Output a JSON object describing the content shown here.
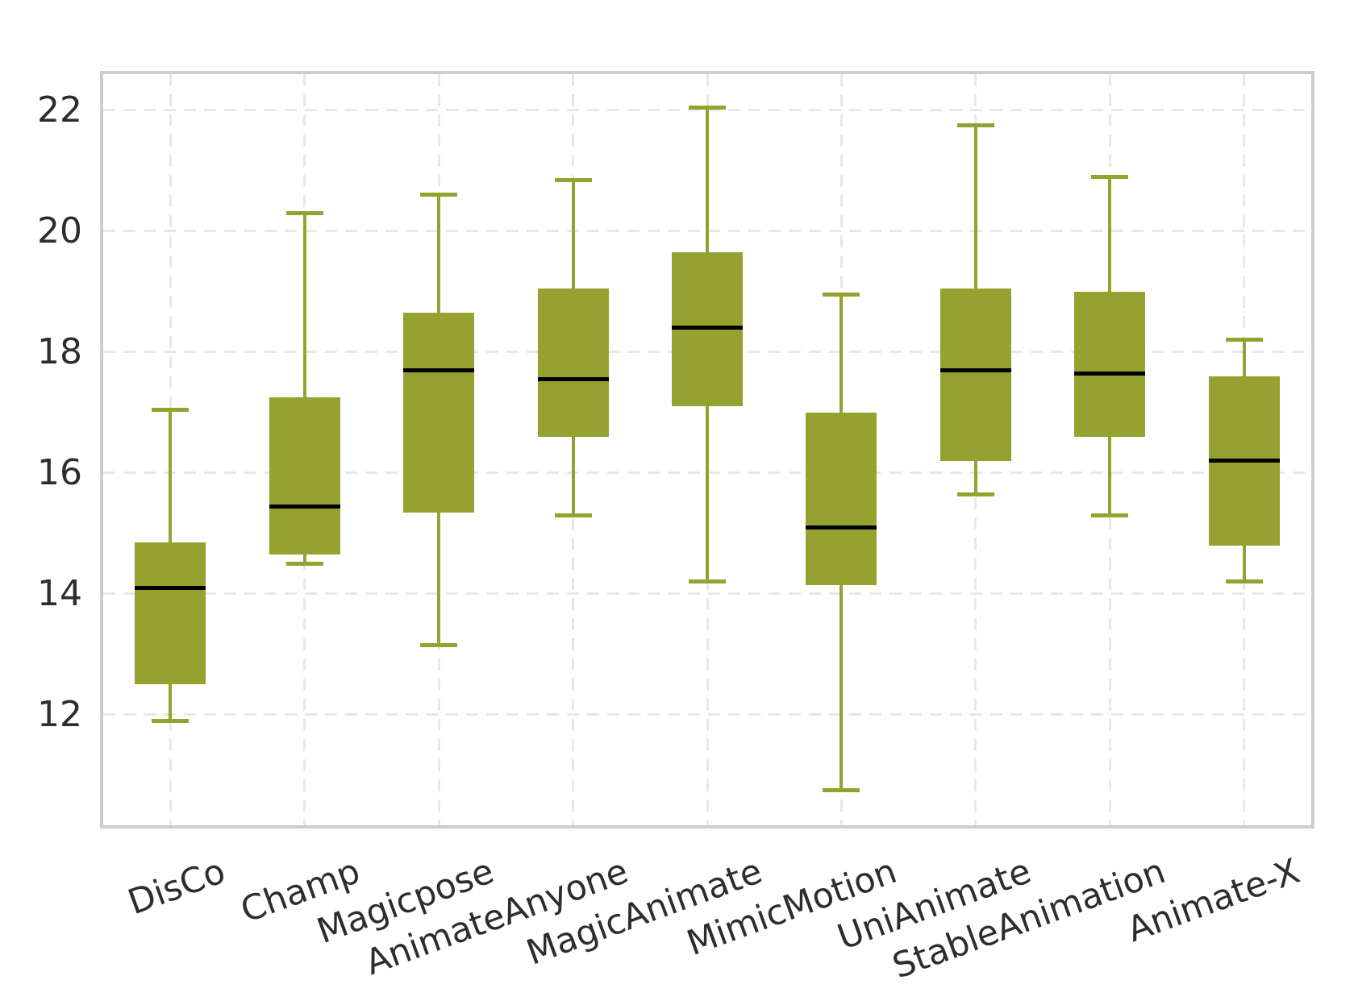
{
  "chart_data": {
    "type": "boxplot",
    "title": "",
    "xlabel": "",
    "ylabel": "",
    "grid": true,
    "y_ticks": [
      12,
      14,
      16,
      18,
      20,
      22
    ],
    "ylim": [
      10.17,
      22.6
    ],
    "categories": [
      "DisCo",
      "Champ",
      "Magicpose",
      "AnimateAnyone",
      "MagicAnimate",
      "MimicMotion",
      "UniAnimate",
      "StableAnimation",
      "Animate-X"
    ],
    "boxes": [
      {
        "label": "DisCo",
        "whisker_low": 11.9,
        "q1": 12.5,
        "median": 14.1,
        "q3": 14.85,
        "whisker_high": 17.05
      },
      {
        "label": "Champ",
        "whisker_low": 14.5,
        "q1": 14.65,
        "median": 15.45,
        "q3": 17.25,
        "whisker_high": 20.3
      },
      {
        "label": "Magicpose",
        "whisker_low": 13.15,
        "q1": 15.35,
        "median": 17.7,
        "q3": 18.65,
        "whisker_high": 20.6
      },
      {
        "label": "AnimateAnyone",
        "whisker_low": 15.3,
        "q1": 16.6,
        "median": 17.55,
        "q3": 19.05,
        "whisker_high": 20.85
      },
      {
        "label": "MagicAnimate",
        "whisker_low": 14.2,
        "q1": 17.1,
        "median": 18.4,
        "q3": 19.65,
        "whisker_high": 22.05
      },
      {
        "label": "MimicMotion",
        "whisker_low": 10.75,
        "q1": 14.15,
        "median": 15.1,
        "q3": 17.0,
        "whisker_high": 18.95
      },
      {
        "label": "UniAnimate",
        "whisker_low": 15.65,
        "q1": 16.2,
        "median": 17.7,
        "q3": 19.05,
        "whisker_high": 21.75
      },
      {
        "label": "StableAnimation",
        "whisker_low": 15.3,
        "q1": 16.6,
        "median": 17.65,
        "q3": 19.0,
        "whisker_high": 20.9
      },
      {
        "label": "Animate-X",
        "whisker_low": 14.2,
        "q1": 14.8,
        "median": 16.2,
        "q3": 17.6,
        "whisker_high": 18.2
      }
    ],
    "colors": {
      "box_fill": "#96a230",
      "whisker": "#96a230",
      "median": "#000000",
      "grid": "#e8e8e8",
      "spine": "#cdcdcd",
      "tick_text": "#2d2d2d",
      "background": "#ffffff"
    },
    "legend": null
  }
}
